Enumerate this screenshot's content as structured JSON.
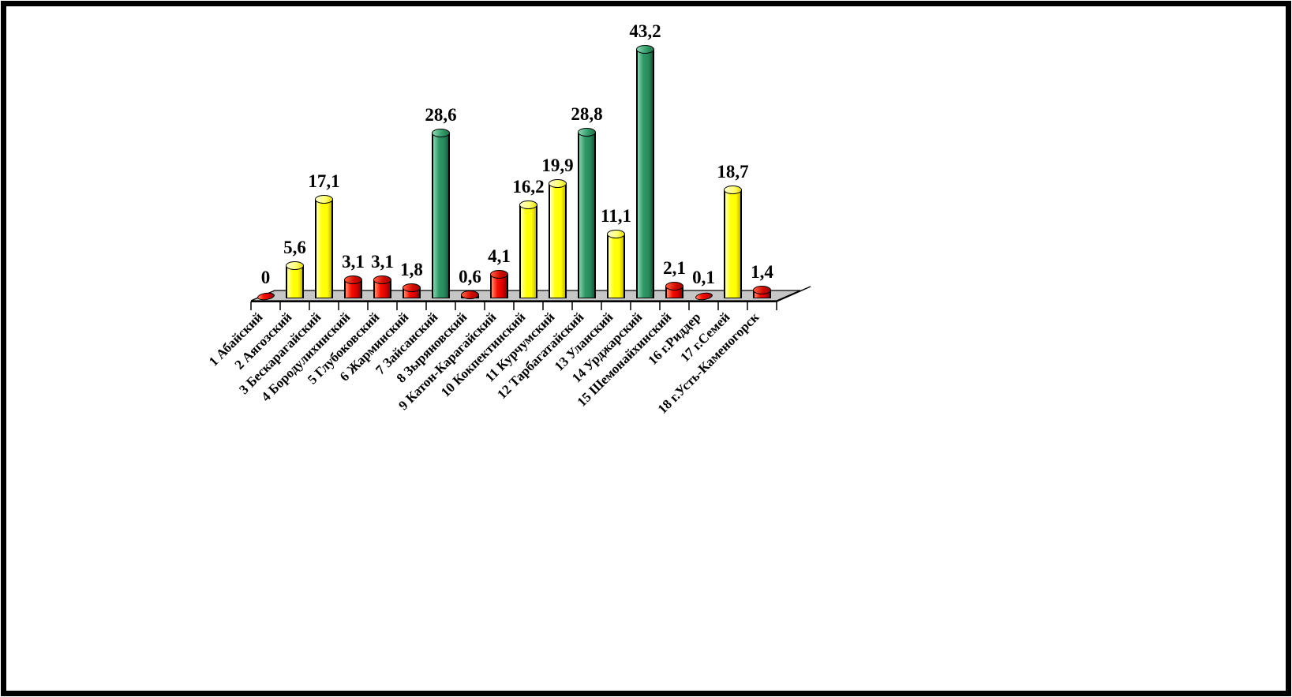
{
  "frame": {
    "background_color": "#ffffff",
    "border_color": "#000000"
  },
  "chart_data": {
    "type": "bar",
    "style": "3d-cylinder",
    "title": "",
    "xlabel": "",
    "ylabel": "",
    "ylim": [
      0,
      45
    ],
    "grid": false,
    "legend": false,
    "decimal_separator": ",",
    "plot_background": "#ffffff",
    "floor_color": "#c6c6c6",
    "axis_color": "#000000",
    "data_label_color": "#000000",
    "categories": [
      "1 Абайский",
      "2 Аягозский",
      "3 Бескарагайский",
      "4 Бородулихинский",
      "5 Глубоковский",
      "6 Жарминский",
      "7 Зайсанский",
      "8 Зыряновский",
      "9 Катон-Карагайский",
      "10 Кокпектинский",
      "11 Курчумский",
      "12 Тарбагатайский",
      "13 Уланский",
      "14 Урджарский",
      "15 Шемонайхинский",
      "16 г.Риддер",
      "17 г.Семей",
      "18 г.Усть-Каменогорск"
    ],
    "values": [
      0,
      5.6,
      17.1,
      3.1,
      3.1,
      1.8,
      28.6,
      0.6,
      4.1,
      16.2,
      19.9,
      28.8,
      11.1,
      43.2,
      2.1,
      0.1,
      18.7,
      1.4
    ],
    "display_values": [
      "0",
      "5,6",
      "17,1",
      "3,1",
      "3,1",
      "1,8",
      "28,6",
      "0,6",
      "4,1",
      "16,2",
      "19,9",
      "28,8",
      "11,1",
      "43,2",
      "2,1",
      "0,1",
      "18,7",
      "1,4"
    ],
    "bar_colors": [
      "red",
      "yellow",
      "yellow",
      "red",
      "red",
      "red",
      "green",
      "red",
      "red",
      "yellow",
      "yellow",
      "green",
      "yellow",
      "green",
      "red",
      "red",
      "yellow",
      "red"
    ],
    "color_map": {
      "red": "#ee1100",
      "yellow": "#ffff00",
      "green": "#2e9966"
    }
  }
}
